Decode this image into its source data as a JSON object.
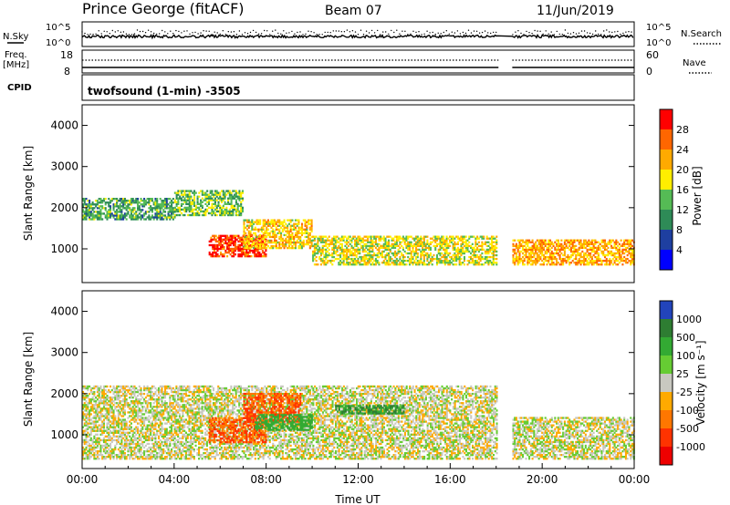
{
  "header": {
    "site": "Prince George (fitACF)",
    "beam": "Beam 07",
    "date": "11/Jun/2019"
  },
  "strip_labels": {
    "nsky": "N.Sky",
    "freq_line1": "Freq.",
    "freq_line2": "[MHz]",
    "cpid": "CPID",
    "nsearch": "N.Search",
    "nave": "Nave",
    "nsky_ticks": [
      "10^5",
      "10^0"
    ],
    "nsearch_ticks": [
      "10^5",
      "10^0"
    ],
    "freq_ticks": [
      "18",
      "8"
    ],
    "nave_ticks": [
      "60",
      "0"
    ],
    "cpid_text": "twofsound (1-min) -3505"
  },
  "chart_data": [
    {
      "type": "heatmap",
      "panel": "power",
      "ylabel": "Slant Range [km]",
      "ylim": [
        180,
        4500
      ],
      "y_ticks": [
        "4000",
        "3000",
        "2000",
        "1000"
      ],
      "y_tick_values": [
        4000,
        3000,
        2000,
        1000
      ],
      "xlim": [
        0,
        24
      ],
      "color_label": "Power [dB]",
      "colorbar_ticks": [
        "28",
        "24",
        "20",
        "16",
        "12",
        "8",
        "4"
      ],
      "colorbar_colors": [
        "#ff0000",
        "#ff6600",
        "#ffaa00",
        "#ffee00",
        "#55bb55",
        "#2e8b57",
        "#1e3fa0",
        "#0000ff"
      ],
      "data_gap_hours": [
        18.1,
        18.7
      ],
      "echo_regions": [
        {
          "t0": 0.0,
          "t1": 4.0,
          "r0": 1700,
          "r1": 2200,
          "value": 10
        },
        {
          "t0": 4.0,
          "t1": 7.0,
          "r0": 1800,
          "r1": 2400,
          "value": 12
        },
        {
          "t0": 5.5,
          "t1": 8.0,
          "r0": 800,
          "r1": 1300,
          "value": 26
        },
        {
          "t0": 7.0,
          "t1": 10.0,
          "r0": 1000,
          "r1": 1700,
          "value": 18
        },
        {
          "t0": 10.0,
          "t1": 18.0,
          "r0": 600,
          "r1": 1300,
          "value": 16
        },
        {
          "t0": 18.7,
          "t1": 24.0,
          "r0": 600,
          "r1": 1200,
          "value": 20
        }
      ]
    },
    {
      "type": "heatmap",
      "panel": "velocity",
      "ylabel": "Slant Range [km]",
      "ylim": [
        180,
        4500
      ],
      "y_ticks": [
        "4000",
        "3000",
        "2000",
        "1000"
      ],
      "y_tick_values": [
        4000,
        3000,
        2000,
        1000
      ],
      "xlim": [
        0,
        24
      ],
      "xlabel": "Time UT",
      "x_ticks": [
        "00:00",
        "04:00",
        "08:00",
        "12:00",
        "16:00",
        "20:00",
        "00:00"
      ],
      "x_tick_values": [
        0,
        4,
        8,
        12,
        16,
        20,
        24
      ],
      "color_label": "Velocity [m s⁻¹]",
      "colorbar_ticks": [
        "1000",
        "500",
        "100",
        "25",
        "-25",
        "-100",
        "-500",
        "-1000"
      ],
      "colorbar_colors": [
        "#2244bb",
        "#2e7d32",
        "#33aa33",
        "#66cc33",
        "#c8c8c0",
        "#ffaa00",
        "#ff7700",
        "#ff3300",
        "#ee0000"
      ],
      "data_gap_hours": [
        18.1,
        18.7
      ],
      "echo_regions": [
        {
          "t0": 0.0,
          "t1": 18.0,
          "r0": 400,
          "r1": 2200,
          "value": 0
        },
        {
          "t0": 5.5,
          "t1": 8.0,
          "r0": 800,
          "r1": 1400,
          "value": -300
        },
        {
          "t0": 7.0,
          "t1": 9.5,
          "r0": 1300,
          "r1": 2000,
          "value": -300
        },
        {
          "t0": 7.5,
          "t1": 10.0,
          "r0": 1100,
          "r1": 1500,
          "value": 200
        },
        {
          "t0": 11.0,
          "t1": 14.0,
          "r0": 1500,
          "r1": 1700,
          "value": 300
        },
        {
          "t0": 18.7,
          "t1": 24.0,
          "r0": 400,
          "r1": 1400,
          "value": 0
        }
      ]
    }
  ]
}
